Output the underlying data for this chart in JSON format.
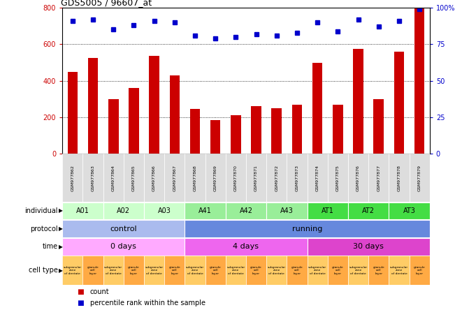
{
  "title": "GDS5005 / 96607_at",
  "samples": [
    "GSM977862",
    "GSM977863",
    "GSM977864",
    "GSM977865",
    "GSM977866",
    "GSM977867",
    "GSM977868",
    "GSM977869",
    "GSM977870",
    "GSM977871",
    "GSM977872",
    "GSM977873",
    "GSM977874",
    "GSM977875",
    "GSM977876",
    "GSM977877",
    "GSM977878",
    "GSM977879"
  ],
  "counts": [
    450,
    525,
    300,
    360,
    535,
    430,
    245,
    185,
    210,
    260,
    250,
    270,
    500,
    270,
    575,
    300,
    560,
    800
  ],
  "percentiles": [
    91,
    92,
    85,
    88,
    91,
    90,
    81,
    79,
    80,
    82,
    81,
    83,
    90,
    84,
    92,
    87,
    91,
    99
  ],
  "bar_color": "#CC0000",
  "dot_color": "#0000CC",
  "ylim_left": [
    0,
    800
  ],
  "ylim_right": [
    0,
    100
  ],
  "yticks_left": [
    0,
    200,
    400,
    600,
    800
  ],
  "yticks_right": [
    0,
    25,
    50,
    75,
    100
  ],
  "yticklabels_right": [
    "0",
    "25",
    "50",
    "75",
    "100%"
  ],
  "grid_lines": [
    200,
    400,
    600
  ],
  "individual_groups": [
    {
      "label": "A01",
      "start": 0,
      "end": 2,
      "color": "#CCFFCC"
    },
    {
      "label": "A02",
      "start": 2,
      "end": 4,
      "color": "#CCFFCC"
    },
    {
      "label": "A03",
      "start": 4,
      "end": 6,
      "color": "#CCFFCC"
    },
    {
      "label": "A41",
      "start": 6,
      "end": 8,
      "color": "#99EE99"
    },
    {
      "label": "A42",
      "start": 8,
      "end": 10,
      "color": "#99EE99"
    },
    {
      "label": "A43",
      "start": 10,
      "end": 12,
      "color": "#99EE99"
    },
    {
      "label": "AT1",
      "start": 12,
      "end": 14,
      "color": "#44DD44"
    },
    {
      "label": "AT2",
      "start": 14,
      "end": 16,
      "color": "#44DD44"
    },
    {
      "label": "AT3",
      "start": 16,
      "end": 18,
      "color": "#44DD44"
    }
  ],
  "protocol_groups": [
    {
      "label": "control",
      "start": 0,
      "end": 6,
      "color": "#AABBEE"
    },
    {
      "label": "running",
      "start": 6,
      "end": 18,
      "color": "#6688DD"
    }
  ],
  "time_groups": [
    {
      "label": "0 days",
      "start": 0,
      "end": 6,
      "color": "#FFAAFF"
    },
    {
      "label": "4 days",
      "start": 6,
      "end": 12,
      "color": "#EE66EE"
    },
    {
      "label": "30 days",
      "start": 12,
      "end": 18,
      "color": "#DD44CC"
    }
  ],
  "cell_type_labels": [
    "subgranular\nzone\nof dentate",
    "granule\ncell\nlayer",
    "subgranular\nzone\nof dentate",
    "granule\ncell\nlayer",
    "subgranular\nzone\nof dentate",
    "granule\ncell\nlayer",
    "subgranular\nzone\nof dentate",
    "granule\ncell\nlayer",
    "subgranular\nzone\nof dentate",
    "granule\ncell\nlayer",
    "subgranular\nzone\nof dentate",
    "granule\ncell\nlayer",
    "subgranular\nzone\nof dentate",
    "granule\ncell\nlayer",
    "subgranular\nzone\nof dentate",
    "granule\ncell\nlayer",
    "subgranular\nzone\nof dentate",
    "granule\ncell\nlayer"
  ],
  "cell_type_colors": [
    "#FFCC66",
    "#FFAA44"
  ],
  "gsm_bg_color": "#DDDDDD",
  "legend_count_color": "#CC0000",
  "legend_pct_color": "#0000CC"
}
